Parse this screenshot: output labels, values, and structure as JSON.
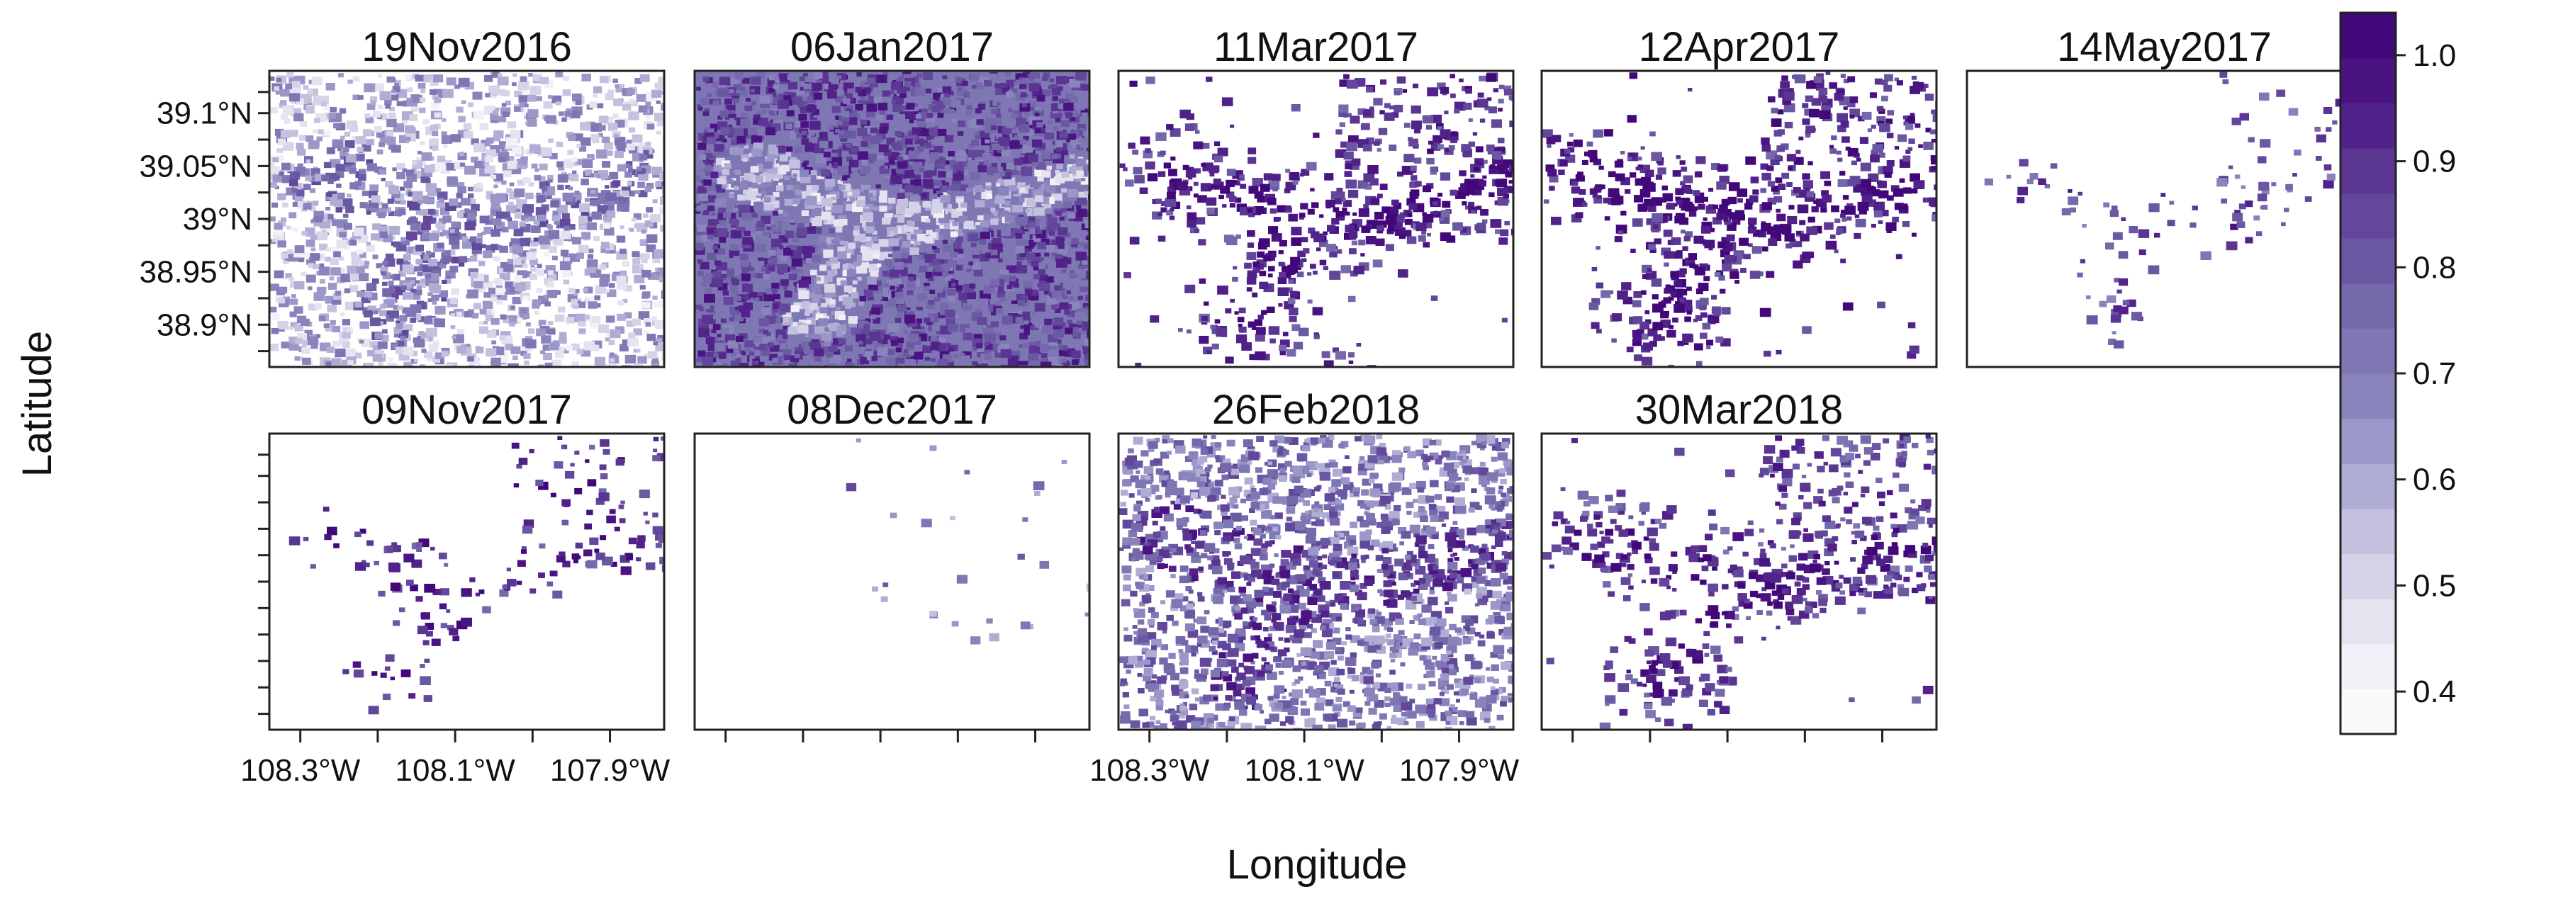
{
  "chart_data": {
    "type": "heatmap",
    "title": "",
    "xlabel": "Longitude",
    "ylabel": "Latitude",
    "layout": {
      "rows": 2,
      "cols": 5
    },
    "x_ticks": [
      "108.3°W",
      "108.1°W",
      "107.9°W"
    ],
    "y_ticks": [
      "39.1°N",
      "39.05°N",
      "39°N",
      "38.95°N",
      "38.9°N"
    ],
    "x_tick_values": [
      -108.3,
      -108.1,
      -107.9
    ],
    "y_tick_values": [
      39.1,
      39.05,
      39.0,
      38.95,
      38.9
    ],
    "xlim": [
      -108.34,
      -107.83
    ],
    "ylim": [
      38.86,
      39.14
    ],
    "colorbar": {
      "ticks": [
        "1.0",
        "0.9",
        "0.8",
        "0.7",
        "0.6",
        "0.5",
        "0.4"
      ],
      "tick_values": [
        1.0,
        0.9,
        0.8,
        0.7,
        0.6,
        0.5,
        0.4
      ],
      "range": [
        0.36,
        1.04
      ],
      "colors": [
        "#fbf9fc",
        "#f3f0f7",
        "#e6e2f0",
        "#d6d3e8",
        "#c4c1df",
        "#b0add4",
        "#9b97c8",
        "#8a84bd",
        "#7e77b4",
        "#7569ac",
        "#6b58a3",
        "#62479b",
        "#5a3592",
        "#512289",
        "#491382",
        "#42087a"
      ]
    },
    "panels": [
      {
        "label": "19Nov2016",
        "row": 0,
        "col": 0,
        "density": 0.85,
        "base": 0.58,
        "cover": "broad"
      },
      {
        "label": "06Jan2017",
        "row": 0,
        "col": 1,
        "density": 1.0,
        "base": 0.78,
        "cover": "full"
      },
      {
        "label": "11Mar2017",
        "row": 0,
        "col": 2,
        "density": 0.6,
        "base": 0.88,
        "cover": "valley"
      },
      {
        "label": "12Apr2017",
        "row": 0,
        "col": 3,
        "density": 0.6,
        "base": 0.9,
        "cover": "valley"
      },
      {
        "label": "14May2017",
        "row": 0,
        "col": 4,
        "density": 0.18,
        "base": 0.8,
        "cover": "sparse"
      },
      {
        "label": "09Nov2017",
        "row": 1,
        "col": 0,
        "density": 0.3,
        "base": 0.88,
        "cover": "sparse"
      },
      {
        "label": "08Dec2017",
        "row": 1,
        "col": 1,
        "density": 0.05,
        "base": 0.7,
        "cover": "trace"
      },
      {
        "label": "26Feb2018",
        "row": 1,
        "col": 2,
        "density": 0.85,
        "base": 0.72,
        "cover": "broad"
      },
      {
        "label": "30Mar2018",
        "row": 1,
        "col": 3,
        "density": 0.5,
        "base": 0.85,
        "cover": "valley"
      }
    ]
  }
}
